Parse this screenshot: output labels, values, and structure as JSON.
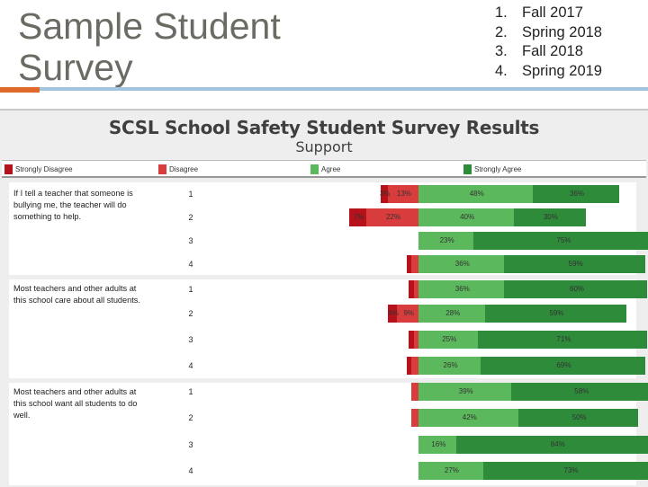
{
  "slide": {
    "title": "Sample Student Survey",
    "terms": [
      {
        "num": "1.",
        "label": "Fall 2017"
      },
      {
        "num": "2.",
        "label": "Spring 2018"
      },
      {
        "num": "3.",
        "label": "Fall 2018"
      },
      {
        "num": "4.",
        "label": "Spring 2019"
      }
    ]
  },
  "colors": {
    "strongly_disagree": "#b5121b",
    "disagree": "#d93c3c",
    "agree": "#5cb85c",
    "strongly_agree": "#2e8b3a"
  },
  "chart_data": {
    "type": "bar",
    "subtype": "diverging-stacked-horizontal",
    "title": "SCSL School Safety Student Survey Results",
    "subtitle": "Support",
    "legend": [
      "Strongly Disagree",
      "Disagree",
      "Agree",
      "Strongly Agree"
    ],
    "categories": [
      "1",
      "2",
      "3",
      "4"
    ],
    "questions": [
      {
        "text": "If I tell a teacher that someone is bullying me, the teacher will do something to help.",
        "rows": [
          {
            "label": "1",
            "strongly_disagree": 3,
            "disagree": 13,
            "agree": 48,
            "strongly_agree": 36,
            "labels": {
              "strongly_disagree": "3%",
              "disagree": "13%",
              "agree": "48%",
              "strongly_agree": "36%"
            }
          },
          {
            "label": "2",
            "strongly_disagree": 7,
            "disagree": 22,
            "agree": 40,
            "strongly_agree": 30,
            "labels": {
              "strongly_disagree": "7%",
              "disagree": "22%",
              "agree": "40%",
              "strongly_agree": "30%"
            }
          },
          {
            "label": "3",
            "strongly_disagree": 0,
            "disagree": 0,
            "agree": 23,
            "strongly_agree": 75,
            "labels": {
              "agree": "23%",
              "strongly_agree": "75%"
            }
          },
          {
            "label": "4",
            "strongly_disagree": 2,
            "disagree": 3,
            "agree": 36,
            "strongly_agree": 59,
            "labels": {
              "agree": "36%",
              "strongly_agree": "59%"
            }
          }
        ]
      },
      {
        "text": "Most teachers and other adults at this school care about all students.",
        "rows": [
          {
            "label": "1",
            "strongly_disagree": 2,
            "disagree": 2,
            "agree": 36,
            "strongly_agree": 60,
            "labels": {
              "agree": "36%",
              "strongly_agree": "60%"
            }
          },
          {
            "label": "2",
            "strongly_disagree": 4,
            "disagree": 9,
            "agree": 28,
            "strongly_agree": 59,
            "labels": {
              "strongly_disagree": "4%",
              "disagree": "9%",
              "agree": "28%",
              "strongly_agree": "59%"
            }
          },
          {
            "label": "3",
            "strongly_disagree": 2,
            "disagree": 2,
            "agree": 25,
            "strongly_agree": 71,
            "labels": {
              "agree": "25%",
              "strongly_agree": "71%"
            }
          },
          {
            "label": "4",
            "strongly_disagree": 2,
            "disagree": 3,
            "agree": 26,
            "strongly_agree": 69,
            "labels": {
              "agree": "26%",
              "strongly_agree": "69%"
            }
          }
        ]
      },
      {
        "text": "Most teachers and other adults at this school want all students to do well.",
        "rows": [
          {
            "label": "1",
            "strongly_disagree": 0,
            "disagree": 3,
            "agree": 39,
            "strongly_agree": 58,
            "labels": {
              "agree": "39%",
              "strongly_agree": "58%"
            }
          },
          {
            "label": "2",
            "strongly_disagree": 0,
            "disagree": 3,
            "agree": 42,
            "strongly_agree": 50,
            "labels": {
              "agree": "42%",
              "strongly_agree": "50%"
            }
          },
          {
            "label": "3",
            "strongly_disagree": 0,
            "disagree": 0,
            "agree": 16,
            "strongly_agree": 84,
            "labels": {
              "agree": "16%",
              "strongly_agree": "84%"
            }
          },
          {
            "label": "4",
            "strongly_disagree": 0,
            "disagree": 0,
            "agree": 27,
            "strongly_agree": 73,
            "labels": {
              "agree": "27%",
              "strongly_agree": "73%"
            }
          }
        ]
      }
    ]
  }
}
